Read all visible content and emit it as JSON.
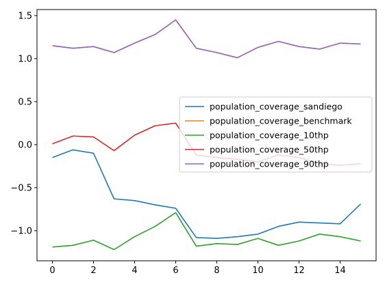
{
  "chart_data": {
    "type": "line",
    "title": "",
    "xlabel": "",
    "ylabel": "",
    "x": [
      0,
      1,
      2,
      3,
      4,
      5,
      6,
      7,
      8,
      9,
      10,
      11,
      12,
      13,
      14,
      15
    ],
    "xlim": [
      -0.75,
      15.75
    ],
    "ylim": [
      -1.35,
      1.57
    ],
    "xticks": [
      0,
      2,
      4,
      6,
      8,
      10,
      12,
      14
    ],
    "yticks": [
      -1.0,
      -0.5,
      0.0,
      0.5,
      1.0,
      1.5
    ],
    "xtick_labels": [
      "0",
      "2",
      "4",
      "6",
      "8",
      "10",
      "12",
      "14"
    ],
    "ytick_labels": [
      "−1.0",
      "−0.5",
      "0.0",
      "0.5",
      "1.0",
      "1.5"
    ],
    "grid": false,
    "legend_position": "center-right",
    "series": [
      {
        "name": "population_coverage_sandiego",
        "color": "#1f77b4",
        "values": [
          -0.15,
          -0.06,
          -0.1,
          -0.63,
          -0.65,
          -0.7,
          -0.74,
          -1.08,
          -1.09,
          -1.07,
          -1.04,
          -0.95,
          -0.9,
          -0.91,
          -0.92,
          -0.69
        ]
      },
      {
        "name": "population_coverage_benchmark",
        "color": "#ff7f0e",
        "values": [
          1.15,
          1.12,
          1.14,
          1.07,
          1.18,
          1.28,
          1.45,
          1.12,
          1.07,
          1.01,
          1.13,
          1.2,
          1.14,
          1.11,
          1.18,
          1.17
        ]
      },
      {
        "name": "population_coverage_10thp",
        "color": "#2ca02c",
        "values": [
          -1.19,
          -1.17,
          -1.11,
          -1.22,
          -1.07,
          -0.95,
          -0.79,
          -1.18,
          -1.15,
          -1.16,
          -1.09,
          -1.17,
          -1.12,
          -1.04,
          -1.07,
          -1.12
        ]
      },
      {
        "name": "population_coverage_50thp",
        "color": "#d62728",
        "values": [
          0.01,
          0.1,
          0.09,
          -0.07,
          0.11,
          0.22,
          0.25,
          -0.12,
          -0.15,
          -0.17,
          -0.2,
          -0.12,
          -0.15,
          -0.22,
          -0.24,
          -0.22
        ]
      },
      {
        "name": "population_coverage_90thp",
        "color": "#9467bd",
        "values": [
          1.15,
          1.12,
          1.14,
          1.07,
          1.18,
          1.28,
          1.45,
          1.12,
          1.07,
          1.01,
          1.13,
          1.2,
          1.14,
          1.11,
          1.18,
          1.17
        ]
      }
    ]
  }
}
